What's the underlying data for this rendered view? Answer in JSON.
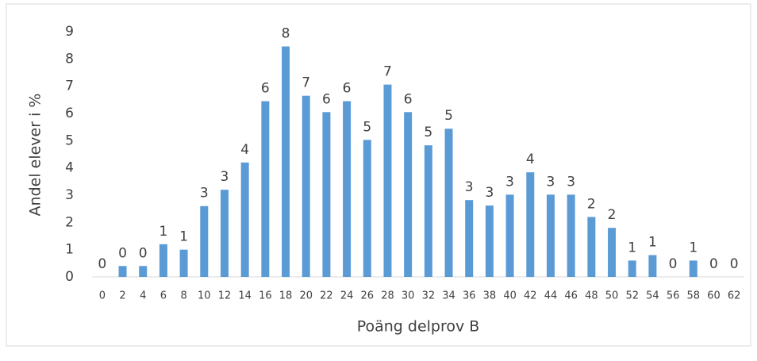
{
  "chart_data": {
    "type": "bar",
    "x_label": "Poäng delprov B",
    "y_label": "Andel elever i %",
    "categories": [
      "0",
      "2",
      "4",
      "6",
      "8",
      "10",
      "12",
      "14",
      "16",
      "18",
      "20",
      "22",
      "24",
      "26",
      "28",
      "30",
      "32",
      "34",
      "36",
      "38",
      "40",
      "42",
      "44",
      "46",
      "48",
      "50",
      "52",
      "54",
      "56",
      "58",
      "60",
      "62"
    ],
    "values": [
      0,
      0.4,
      0.4,
      1.2,
      1.0,
      2.6,
      3.2,
      4.2,
      6.45,
      8.46,
      6.65,
      6.05,
      6.45,
      5.03,
      7.06,
      6.05,
      4.83,
      5.44,
      2.82,
      2.62,
      3.02,
      3.84,
      3.02,
      3.02,
      2.2,
      1.8,
      0.6,
      0.8,
      0,
      0.6,
      0,
      0
    ],
    "value_labels": [
      "0",
      "0",
      "0",
      "1",
      "1",
      "3",
      "3",
      "4",
      "6",
      "8",
      "7",
      "6",
      "6",
      "5",
      "7",
      "6",
      "5",
      "5",
      "3",
      "3",
      "3",
      "4",
      "3",
      "3",
      "2",
      "2",
      "1",
      "1",
      "0",
      "1",
      "0",
      "0"
    ],
    "color": "#5b9bd5",
    "ylim": [
      0,
      9
    ],
    "yticks": [
      0,
      1,
      2,
      3,
      4,
      5,
      6,
      7,
      8,
      9
    ],
    "grid": false
  }
}
